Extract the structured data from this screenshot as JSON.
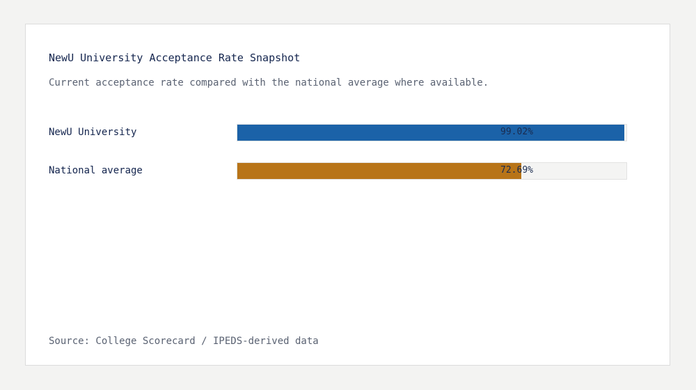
{
  "title": "NewU University Acceptance Rate Snapshot",
  "subtitle": "Current acceptance rate compared with the national average where available.",
  "source": "Source: College Scorecard / IPEDS-derived data",
  "chart_data": {
    "type": "bar",
    "orientation": "horizontal",
    "categories": [
      "NewU University",
      "National average"
    ],
    "values": [
      99.02,
      72.69
    ],
    "value_labels": [
      "99.02%",
      "72.69%"
    ],
    "unit": "%",
    "xlim": [
      0,
      100
    ],
    "colors": [
      "#1b62a8",
      "#b87418"
    ],
    "grid": false,
    "legend": "none"
  }
}
